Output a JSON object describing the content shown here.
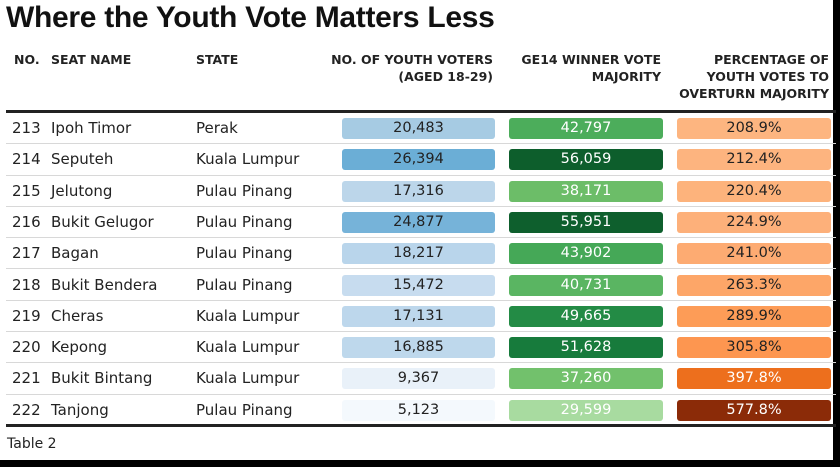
{
  "title": "Where the Youth Vote Matters Less",
  "headers": {
    "no": "NO.",
    "seat": "SEAT NAME",
    "state": "STATE",
    "youth_1": "NO. OF YOUTH VOTERS",
    "youth_2": "(AGED 18-29)",
    "ge14_1": "GE14 WINNER VOTE",
    "ge14_2": "MAJORITY",
    "pct_1": "PERCENTAGE OF",
    "pct_2": "YOUTH VOTES TO",
    "pct_3": "OVERTURN MAJORITY"
  },
  "footer": "Table 2",
  "chart_data": {
    "type": "table",
    "title": "Where the Youth Vote Matters Less",
    "columns": [
      "NO.",
      "SEAT NAME",
      "STATE",
      "NO. OF YOUTH VOTERS (AGED 18-29)",
      "GE14 WINNER VOTE MAJORITY",
      "PERCENTAGE OF YOUTH VOTES TO OVERTURN MAJORITY"
    ],
    "rows": [
      {
        "no": "213",
        "seat": "Ipoh Timor",
        "state": "Perak",
        "youth": "20,483",
        "majority": "42,797",
        "pct": "208.9%",
        "youth_color": "#a6cbe3",
        "maj_color": "#4cad5b",
        "pct_color": "#fdb580",
        "pct_text": "#222"
      },
      {
        "no": "214",
        "seat": "Seputeh",
        "state": "Kuala Lumpur",
        "youth": "26,394",
        "majority": "56,059",
        "pct": "212.4%",
        "youth_color": "#6baed6",
        "maj_color": "#0d5e2c",
        "pct_color": "#fdb47f",
        "pct_text": "#222"
      },
      {
        "no": "215",
        "seat": "Jelutong",
        "state": "Pulau Pinang",
        "youth": "17,316",
        "majority": "38,171",
        "pct": "220.4%",
        "youth_color": "#bcd6ea",
        "maj_color": "#6cbd68",
        "pct_color": "#fdb37c",
        "pct_text": "#222"
      },
      {
        "no": "216",
        "seat": "Bukit Gelugor",
        "state": "Pulau Pinang",
        "youth": "24,877",
        "majority": "55,951",
        "pct": "224.9%",
        "youth_color": "#76b3d9",
        "maj_color": "#0e5f2d",
        "pct_color": "#fdb07a",
        "pct_text": "#222"
      },
      {
        "no": "217",
        "seat": "Bagan",
        "state": "Pulau Pinang",
        "youth": "18,217",
        "majority": "43,902",
        "pct": "241.0%",
        "youth_color": "#b9d5eb",
        "maj_color": "#45a857",
        "pct_color": "#fdab72",
        "pct_text": "#222"
      },
      {
        "no": "218",
        "seat": "Bukit Bendera",
        "state": "Pulau Pinang",
        "youth": "15,472",
        "majority": "40,731",
        "pct": "263.3%",
        "youth_color": "#c7dcef",
        "maj_color": "#5ab562",
        "pct_color": "#fda668",
        "pct_text": "#222"
      },
      {
        "no": "219",
        "seat": "Cheras",
        "state": "Kuala Lumpur",
        "youth": "17,131",
        "majority": "49,665",
        "pct": "289.9%",
        "youth_color": "#bdd7ec",
        "maj_color": "#238b45",
        "pct_color": "#fd9c57",
        "pct_text": "#222"
      },
      {
        "no": "220",
        "seat": "Kepong",
        "state": "Kuala Lumpur",
        "youth": "16,885",
        "majority": "51,628",
        "pct": "305.8%",
        "youth_color": "#bed8ec",
        "maj_color": "#177b3c",
        "pct_color": "#fd9650",
        "pct_text": "#222"
      },
      {
        "no": "221",
        "seat": "Bukit Bintang",
        "state": "Kuala Lumpur",
        "youth": "9,367",
        "majority": "37,260",
        "pct": "397.8%",
        "youth_color": "#e9f1f9",
        "maj_color": "#72c16c",
        "pct_color": "#ed6f1d",
        "pct_text": "#fff"
      },
      {
        "no": "222",
        "seat": "Tanjong",
        "state": "Pulau Pinang",
        "youth": "5,123",
        "majority": "29,599",
        "pct": "577.8%",
        "youth_color": "#f4f9fd",
        "maj_color": "#a8dba0",
        "pct_color": "#8b2b08",
        "pct_text": "#fff"
      }
    ]
  }
}
